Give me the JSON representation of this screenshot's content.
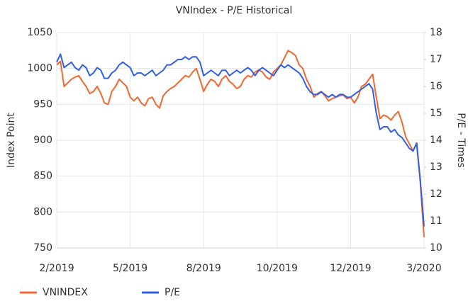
{
  "chart_data": {
    "type": "line",
    "title": "VNIndex - P/E Historical",
    "ylabel": "Index Point",
    "y2label": "P/E - Times",
    "categories": [
      "2/2019",
      null,
      null,
      null,
      null,
      null,
      null,
      null,
      null,
      null,
      null,
      null,
      null,
      null,
      null,
      null,
      null,
      null,
      null,
      null,
      "5/2019",
      null,
      null,
      null,
      null,
      null,
      null,
      null,
      null,
      null,
      null,
      null,
      null,
      null,
      null,
      null,
      null,
      null,
      null,
      null,
      "8/2019",
      null,
      null,
      null,
      null,
      null,
      null,
      null,
      null,
      null,
      null,
      null,
      null,
      null,
      null,
      null,
      null,
      null,
      null,
      null,
      "10/2019",
      null,
      null,
      null,
      null,
      null,
      null,
      null,
      null,
      null,
      null,
      null,
      null,
      null,
      null,
      null,
      null,
      null,
      null,
      null,
      "12/2019",
      null,
      null,
      null,
      null,
      null,
      null,
      null,
      null,
      null,
      null,
      null,
      null,
      null,
      null,
      null,
      null,
      null,
      null,
      null,
      "3/2020"
    ],
    "series": [
      {
        "name": "VNINDEX",
        "color": "#f4662f",
        "values": [
          1005,
          1010,
          975,
          980,
          985,
          988,
          990,
          982,
          975,
          965,
          968,
          975,
          965,
          952,
          950,
          968,
          975,
          985,
          980,
          975,
          960,
          955,
          960,
          952,
          948,
          958,
          960,
          950,
          945,
          962,
          968,
          972,
          975,
          980,
          985,
          990,
          988,
          995,
          1000,
          985,
          968,
          978,
          985,
          982,
          975,
          985,
          990,
          982,
          978,
          972,
          975,
          985,
          990,
          988,
          995,
          998,
          995,
          988,
          985,
          995,
          1000,
          1005,
          1015,
          1025,
          1022,
          1018,
          1005,
          1000,
          985,
          975,
          960,
          965,
          968,
          962,
          955,
          958,
          960,
          962,
          963,
          958,
          960,
          952,
          960,
          975,
          978,
          985,
          992,
          960,
          930,
          935,
          933,
          928,
          935,
          940,
          925,
          905,
          895,
          885,
          895,
          840,
          765
        ]
      },
      {
        "name": "P/E",
        "color": "#2f5fe8",
        "axis": "y2",
        "values": [
          16.9,
          17.2,
          16.7,
          16.8,
          16.9,
          16.7,
          16.6,
          16.8,
          16.7,
          16.4,
          16.5,
          16.7,
          16.6,
          16.3,
          16.3,
          16.5,
          16.6,
          16.8,
          16.9,
          16.8,
          16.7,
          16.4,
          16.5,
          16.5,
          16.4,
          16.5,
          16.6,
          16.4,
          16.5,
          16.6,
          16.8,
          16.8,
          16.9,
          17.0,
          17.0,
          17.1,
          17.0,
          17.1,
          17.1,
          16.9,
          16.4,
          16.5,
          16.6,
          16.5,
          16.4,
          16.6,
          16.6,
          16.4,
          16.5,
          16.6,
          16.5,
          16.6,
          16.7,
          16.6,
          16.4,
          16.6,
          16.7,
          16.6,
          16.5,
          16.4,
          16.6,
          16.8,
          16.7,
          16.8,
          16.7,
          16.6,
          16.5,
          16.3,
          16.0,
          15.8,
          15.7,
          15.7,
          15.8,
          15.7,
          15.6,
          15.7,
          15.6,
          15.7,
          15.7,
          15.6,
          15.6,
          15.7,
          15.8,
          15.9,
          16.0,
          16.1,
          15.9,
          15.0,
          14.4,
          14.5,
          14.5,
          14.3,
          14.4,
          14.2,
          14.1,
          13.9,
          13.7,
          13.6,
          13.9,
          12.5,
          10.8
        ]
      }
    ],
    "ylim": [
      750,
      1050
    ],
    "yticks": [
      750,
      800,
      850,
      900,
      950,
      1000,
      1050
    ],
    "y2lim": [
      10,
      18
    ],
    "y2ticks": [
      10,
      11,
      12,
      13,
      14,
      15,
      16,
      17,
      18
    ],
    "grid": true,
    "legend": "bottom-left"
  }
}
